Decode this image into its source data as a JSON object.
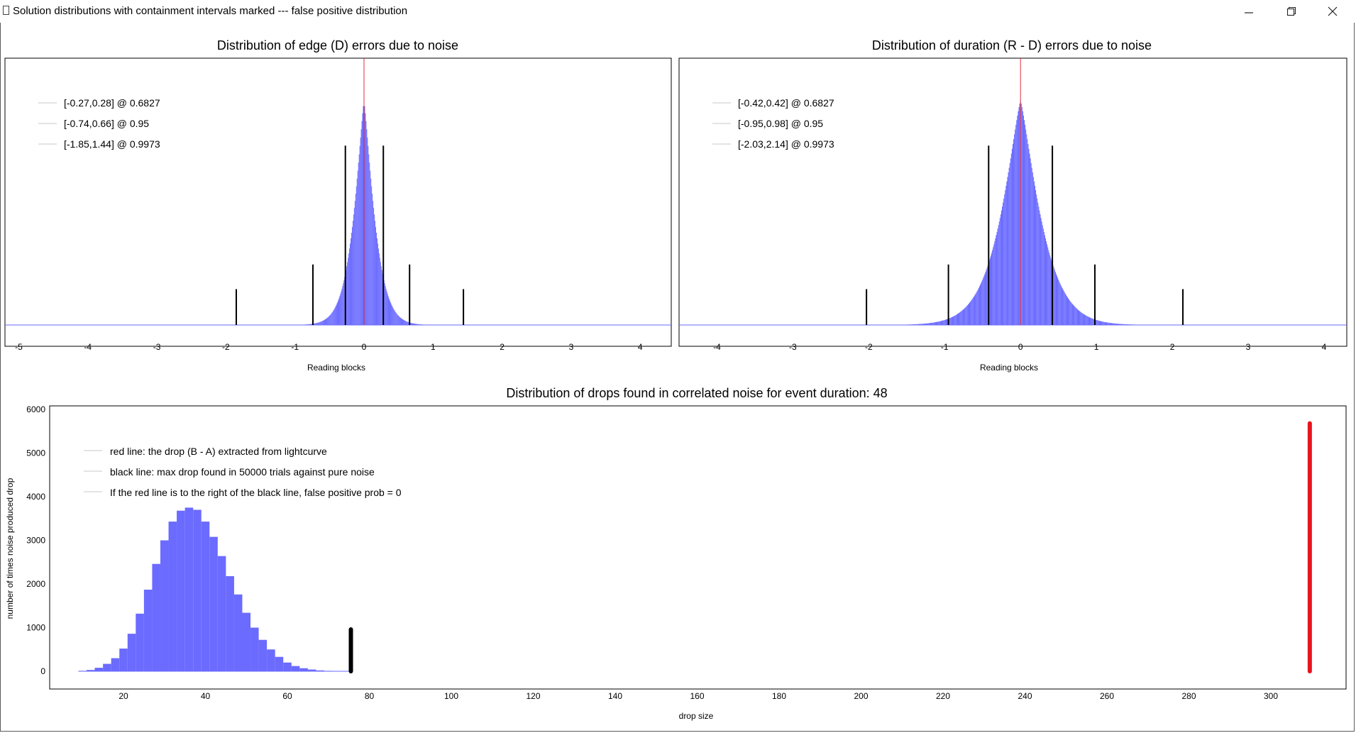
{
  "window": {
    "title": "Solution distributions with containment intervals marked --- false positive distribution",
    "buttons": {
      "minimize": "minimize-icon",
      "restore": "restore-icon",
      "close": "close-icon"
    }
  },
  "colors": {
    "histogram": "#6b6bff",
    "interval_line": "#000000",
    "center_line": "#e0303a",
    "drop_line": "#e8141e"
  },
  "charts": [
    {
      "id": "edge",
      "title": "Distribution of edge (D) errors due to noise",
      "xlabel": "Reading blocks",
      "ylabel": "",
      "x_ticks": [
        "-5",
        "-4",
        "-3",
        "-2",
        "-1",
        "0",
        "1",
        "2",
        "3",
        "4"
      ],
      "legend": [
        "[-0.27,0.28] @ 0.6827",
        "[-0.74,0.66] @ 0.95",
        "[-1.85,1.44] @ 0.9973"
      ]
    },
    {
      "id": "duration",
      "title": "Distribution of duration (R - D) errors due to noise",
      "xlabel": "Reading blocks",
      "ylabel": "",
      "x_ticks": [
        "-4",
        "-3",
        "-2",
        "-1",
        "0",
        "1",
        "2",
        "3",
        "4"
      ],
      "legend": [
        "[-0.42,0.42] @ 0.6827",
        "[-0.95,0.98] @ 0.95",
        "[-2.03,2.14] @ 0.9973"
      ]
    },
    {
      "id": "drops",
      "title": "Distribution of drops found in correlated noise for event duration: 48",
      "xlabel": "drop size",
      "ylabel": "number of times noise produced drop",
      "x_ticks": [
        "20",
        "40",
        "60",
        "80",
        "100",
        "120",
        "140",
        "160",
        "180",
        "200",
        "220",
        "240",
        "260",
        "280",
        "300"
      ],
      "y_ticks": [
        "0",
        "1000",
        "2000",
        "3000",
        "4000",
        "5000",
        "6000"
      ],
      "legend": [
        "red line: the drop (B - A) extracted from lightcurve",
        "black line: max drop found in 50000 trials against pure noise",
        "If the red line is to the right of the black line, false positive prob = 0"
      ]
    }
  ],
  "chart_data": [
    {
      "type": "bar",
      "title": "Distribution of edge (D) errors due to noise",
      "xlabel": "Reading blocks",
      "ylabel": "",
      "xlim": [
        -5.2,
        4.45
      ],
      "ylim": [
        0,
        1.07
      ],
      "distribution": {
        "center": 0.0,
        "scale": 0.19,
        "shape": "laplace-like",
        "peak_relative_height": 1.0
      },
      "intervals": [
        {
          "label": "[-0.27,0.28] @ 0.6827",
          "low": -0.27,
          "high": 0.28,
          "prob": 0.6827,
          "marker_height": 0.8
        },
        {
          "label": "[-0.74,0.66] @ 0.95",
          "low": -0.74,
          "high": 0.66,
          "prob": 0.95,
          "marker_height": 0.27
        },
        {
          "label": "[-1.85,1.44] @ 0.9973",
          "low": -1.85,
          "high": 1.44,
          "prob": 0.9973,
          "marker_height": 0.16
        }
      ],
      "center_line": 0,
      "legend_position": "top-left",
      "grid": false
    },
    {
      "type": "bar",
      "title": "Distribution of duration (R - D) errors due to noise",
      "xlabel": "Reading blocks",
      "ylabel": "",
      "xlim": [
        -4.5,
        4.3
      ],
      "ylim": [
        0,
        1.07
      ],
      "distribution": {
        "center": 0.0,
        "scale": 0.33,
        "shape": "laplace-like",
        "peak_relative_height": 1.0
      },
      "intervals": [
        {
          "label": "[-0.42,0.42] @ 0.6827",
          "low": -0.42,
          "high": 0.42,
          "prob": 0.6827,
          "marker_height": 0.8
        },
        {
          "label": "[-0.95,0.98] @ 0.95",
          "low": -0.95,
          "high": 0.98,
          "prob": 0.95,
          "marker_height": 0.27
        },
        {
          "label": "[-2.03,2.14] @ 0.9973",
          "low": -2.03,
          "high": 2.14,
          "prob": 0.9973,
          "marker_height": 0.16
        }
      ],
      "center_line": 0,
      "legend_position": "top-left",
      "grid": false
    },
    {
      "type": "bar",
      "title": "Distribution of drops found in correlated noise for event duration: 48",
      "xlabel": "drop size",
      "ylabel": "number of times noise produced drop",
      "xlim": [
        2,
        320
      ],
      "ylim": [
        -400,
        6100
      ],
      "bin_width": 2,
      "x": [
        10,
        12,
        14,
        16,
        18,
        20,
        22,
        24,
        26,
        28,
        30,
        32,
        34,
        36,
        38,
        40,
        42,
        44,
        46,
        48,
        50,
        52,
        54,
        56,
        58,
        60,
        62,
        64,
        66,
        68,
        70,
        72,
        74,
        76
      ],
      "values": [
        10,
        30,
        80,
        170,
        300,
        520,
        860,
        1320,
        1870,
        2460,
        3000,
        3430,
        3680,
        3750,
        3700,
        3430,
        3080,
        2640,
        2180,
        1760,
        1340,
        1000,
        720,
        500,
        330,
        200,
        120,
        70,
        40,
        20,
        10,
        6,
        3,
        1
      ],
      "black_line": {
        "x": 75.5,
        "y_top": 960,
        "label": "black line: max drop found in 50000 trials against pure noise"
      },
      "red_line": {
        "x": 309.5,
        "y_top": 5680,
        "label": "red line: the drop (B - A) extracted from lightcurve"
      },
      "note": "If the red line is to the right of the black line, false positive prob = 0",
      "legend_position": "top-left",
      "grid": false
    }
  ]
}
